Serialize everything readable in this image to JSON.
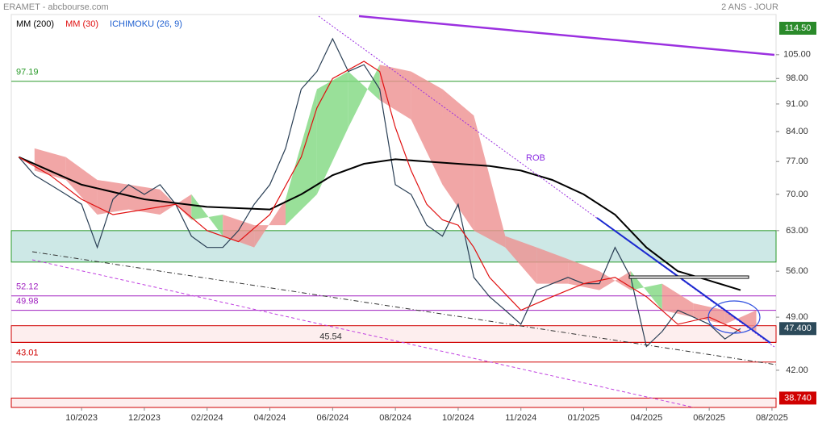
{
  "chart_data": {
    "type": "line",
    "title": "ERAMET - abcbourse.com",
    "subtitle": "2 ANS - JOUR",
    "log_scale": true,
    "xlim": [
      -2.24,
      22.13
    ],
    "xticks": [
      {
        "value": 0,
        "label": "10/2023"
      },
      {
        "value": 2,
        "label": "12/2023"
      },
      {
        "value": 4,
        "label": "02/2024"
      },
      {
        "value": 6,
        "label": "04/2024"
      },
      {
        "value": 8,
        "label": "06/2024"
      },
      {
        "value": 10,
        "label": "08/2024"
      },
      {
        "value": 12,
        "label": "10/2024"
      },
      {
        "value": 14,
        "label": "11/2024"
      },
      {
        "value": 16,
        "label": "01/2025"
      },
      {
        "value": 18,
        "label": "04/2025"
      },
      {
        "value": 20,
        "label": "06/2025"
      },
      {
        "value": 22,
        "label": "08/2025"
      }
    ],
    "ylim": [
      37.7,
      118
    ],
    "yticks": [
      {
        "value": 42,
        "label": "42.00"
      },
      {
        "value": 49,
        "label": "49.00"
      },
      {
        "value": 56,
        "label": "56.00"
      },
      {
        "value": 63,
        "label": "63.00"
      },
      {
        "value": 70,
        "label": "70.00"
      },
      {
        "value": 77,
        "label": "77.00"
      },
      {
        "value": 84,
        "label": "84.00"
      },
      {
        "value": 91,
        "label": "91.00"
      },
      {
        "value": 98,
        "label": "98.00"
      },
      {
        "value": 105,
        "label": "105.00"
      }
    ],
    "price": {
      "color": "#2a3f55",
      "x": [
        -2,
        -1.5,
        -1,
        -0.5,
        0,
        0.5,
        1,
        1.5,
        2,
        2.5,
        3,
        3.5,
        4,
        4.5,
        5,
        5.5,
        6,
        6.5,
        7,
        7.5,
        8,
        8.5,
        9,
        9.5,
        10,
        10.5,
        11,
        11.5,
        12,
        12.5,
        13,
        13.5,
        14,
        14.5,
        15,
        15.5,
        16,
        16.5,
        17,
        17.5,
        18,
        18.5,
        19,
        19.5,
        20,
        20.5,
        21
      ],
      "values": [
        78,
        74,
        72,
        70,
        68,
        60,
        69,
        72,
        70,
        72,
        68,
        62,
        60,
        60,
        63,
        68,
        72,
        80,
        95,
        100,
        110,
        100,
        102,
        95,
        72,
        70,
        64,
        62,
        68,
        55,
        52,
        50,
        48,
        53,
        54,
        55,
        54,
        54,
        60,
        55,
        45,
        47,
        50,
        49,
        48,
        46,
        47.4
      ]
    },
    "series": [
      {
        "name": "MM (200)",
        "color": "#000000",
        "x": [
          -2,
          0,
          2,
          4,
          6,
          7,
          8,
          9,
          10,
          11,
          12,
          13,
          14,
          15,
          16,
          17,
          18,
          19,
          20,
          21
        ],
        "values": [
          78,
          72,
          69,
          67.5,
          67,
          70,
          74,
          76.5,
          77.5,
          77,
          76.5,
          76,
          75,
          73,
          70,
          66,
          60,
          56,
          54.5,
          53
        ]
      },
      {
        "name": "MM (30)",
        "color": "#e01010",
        "x": [
          -2,
          -1,
          0,
          1,
          2,
          3,
          4,
          5,
          6,
          7,
          7.5,
          8,
          9,
          9.5,
          10,
          10.5,
          11,
          11.5,
          12,
          12.5,
          13,
          14,
          15,
          16,
          17,
          18,
          19,
          20,
          21
        ],
        "values": [
          78,
          74,
          69,
          66,
          67,
          68,
          63,
          61,
          66,
          78,
          90,
          98,
          103,
          100,
          85,
          75,
          68,
          65,
          64,
          60,
          55,
          50,
          52,
          54,
          55,
          52,
          48,
          49,
          47
        ]
      },
      {
        "name": "ICHIMOKU (26, 9)",
        "color": "#1e5fd0",
        "kind": "cloud",
        "up_color": "#7fd87f",
        "down_color": "#ee9090",
        "x": [
          -1.5,
          -0.5,
          0.5,
          1.5,
          2.5,
          3.5,
          4.5,
          5.5,
          6.5,
          7.5,
          8.5,
          9.5,
          10.5,
          11.5,
          12.5,
          13.5,
          14.5,
          15.5,
          16.5,
          17.5,
          18.5,
          19.5,
          20.5,
          21.5
        ],
        "span_a": [
          75,
          73,
          66,
          67,
          66,
          70,
          62,
          60,
          69,
          95,
          100,
          92,
          87,
          72,
          63,
          60,
          54,
          54,
          53,
          56,
          50,
          49,
          48,
          50
        ],
        "span_b": [
          80,
          78,
          73,
          72,
          71,
          65,
          66,
          64,
          64,
          70,
          85,
          102,
          100,
          95,
          88,
          62,
          60,
          58,
          56,
          53,
          54,
          51,
          50,
          47
        ]
      }
    ],
    "levels": [
      {
        "value": 97.19,
        "color": "#2a9a2a"
      },
      {
        "value": 52.12,
        "color": "#a020c0"
      },
      {
        "value": 49.98,
        "color": "#a020c0"
      },
      {
        "value": 45.54,
        "color": "#d00000"
      },
      {
        "value": 43.01,
        "color": "#d00000"
      }
    ],
    "zones": [
      {
        "range": [
          57.5,
          63
        ],
        "fill": "#cde8e6",
        "stroke": "#2a9a2a"
      },
      {
        "range": [
          45.54,
          47.8
        ],
        "fill": "#fdeeee",
        "stroke": "#d00000"
      },
      {
        "range": [
          37.7,
          38.74
        ],
        "fill": "#fdeeee",
        "stroke": "#d00000"
      }
    ],
    "price_tags": [
      {
        "value": 114.5,
        "label": "114.50",
        "color": "#2a8a2a"
      },
      {
        "value": 47.4,
        "label": "47.400",
        "color": "#2c4a5a"
      },
      {
        "value": 38.74,
        "label": "38.740",
        "color": "#d00000"
      }
    ],
    "annotations": [
      "ROB"
    ]
  }
}
